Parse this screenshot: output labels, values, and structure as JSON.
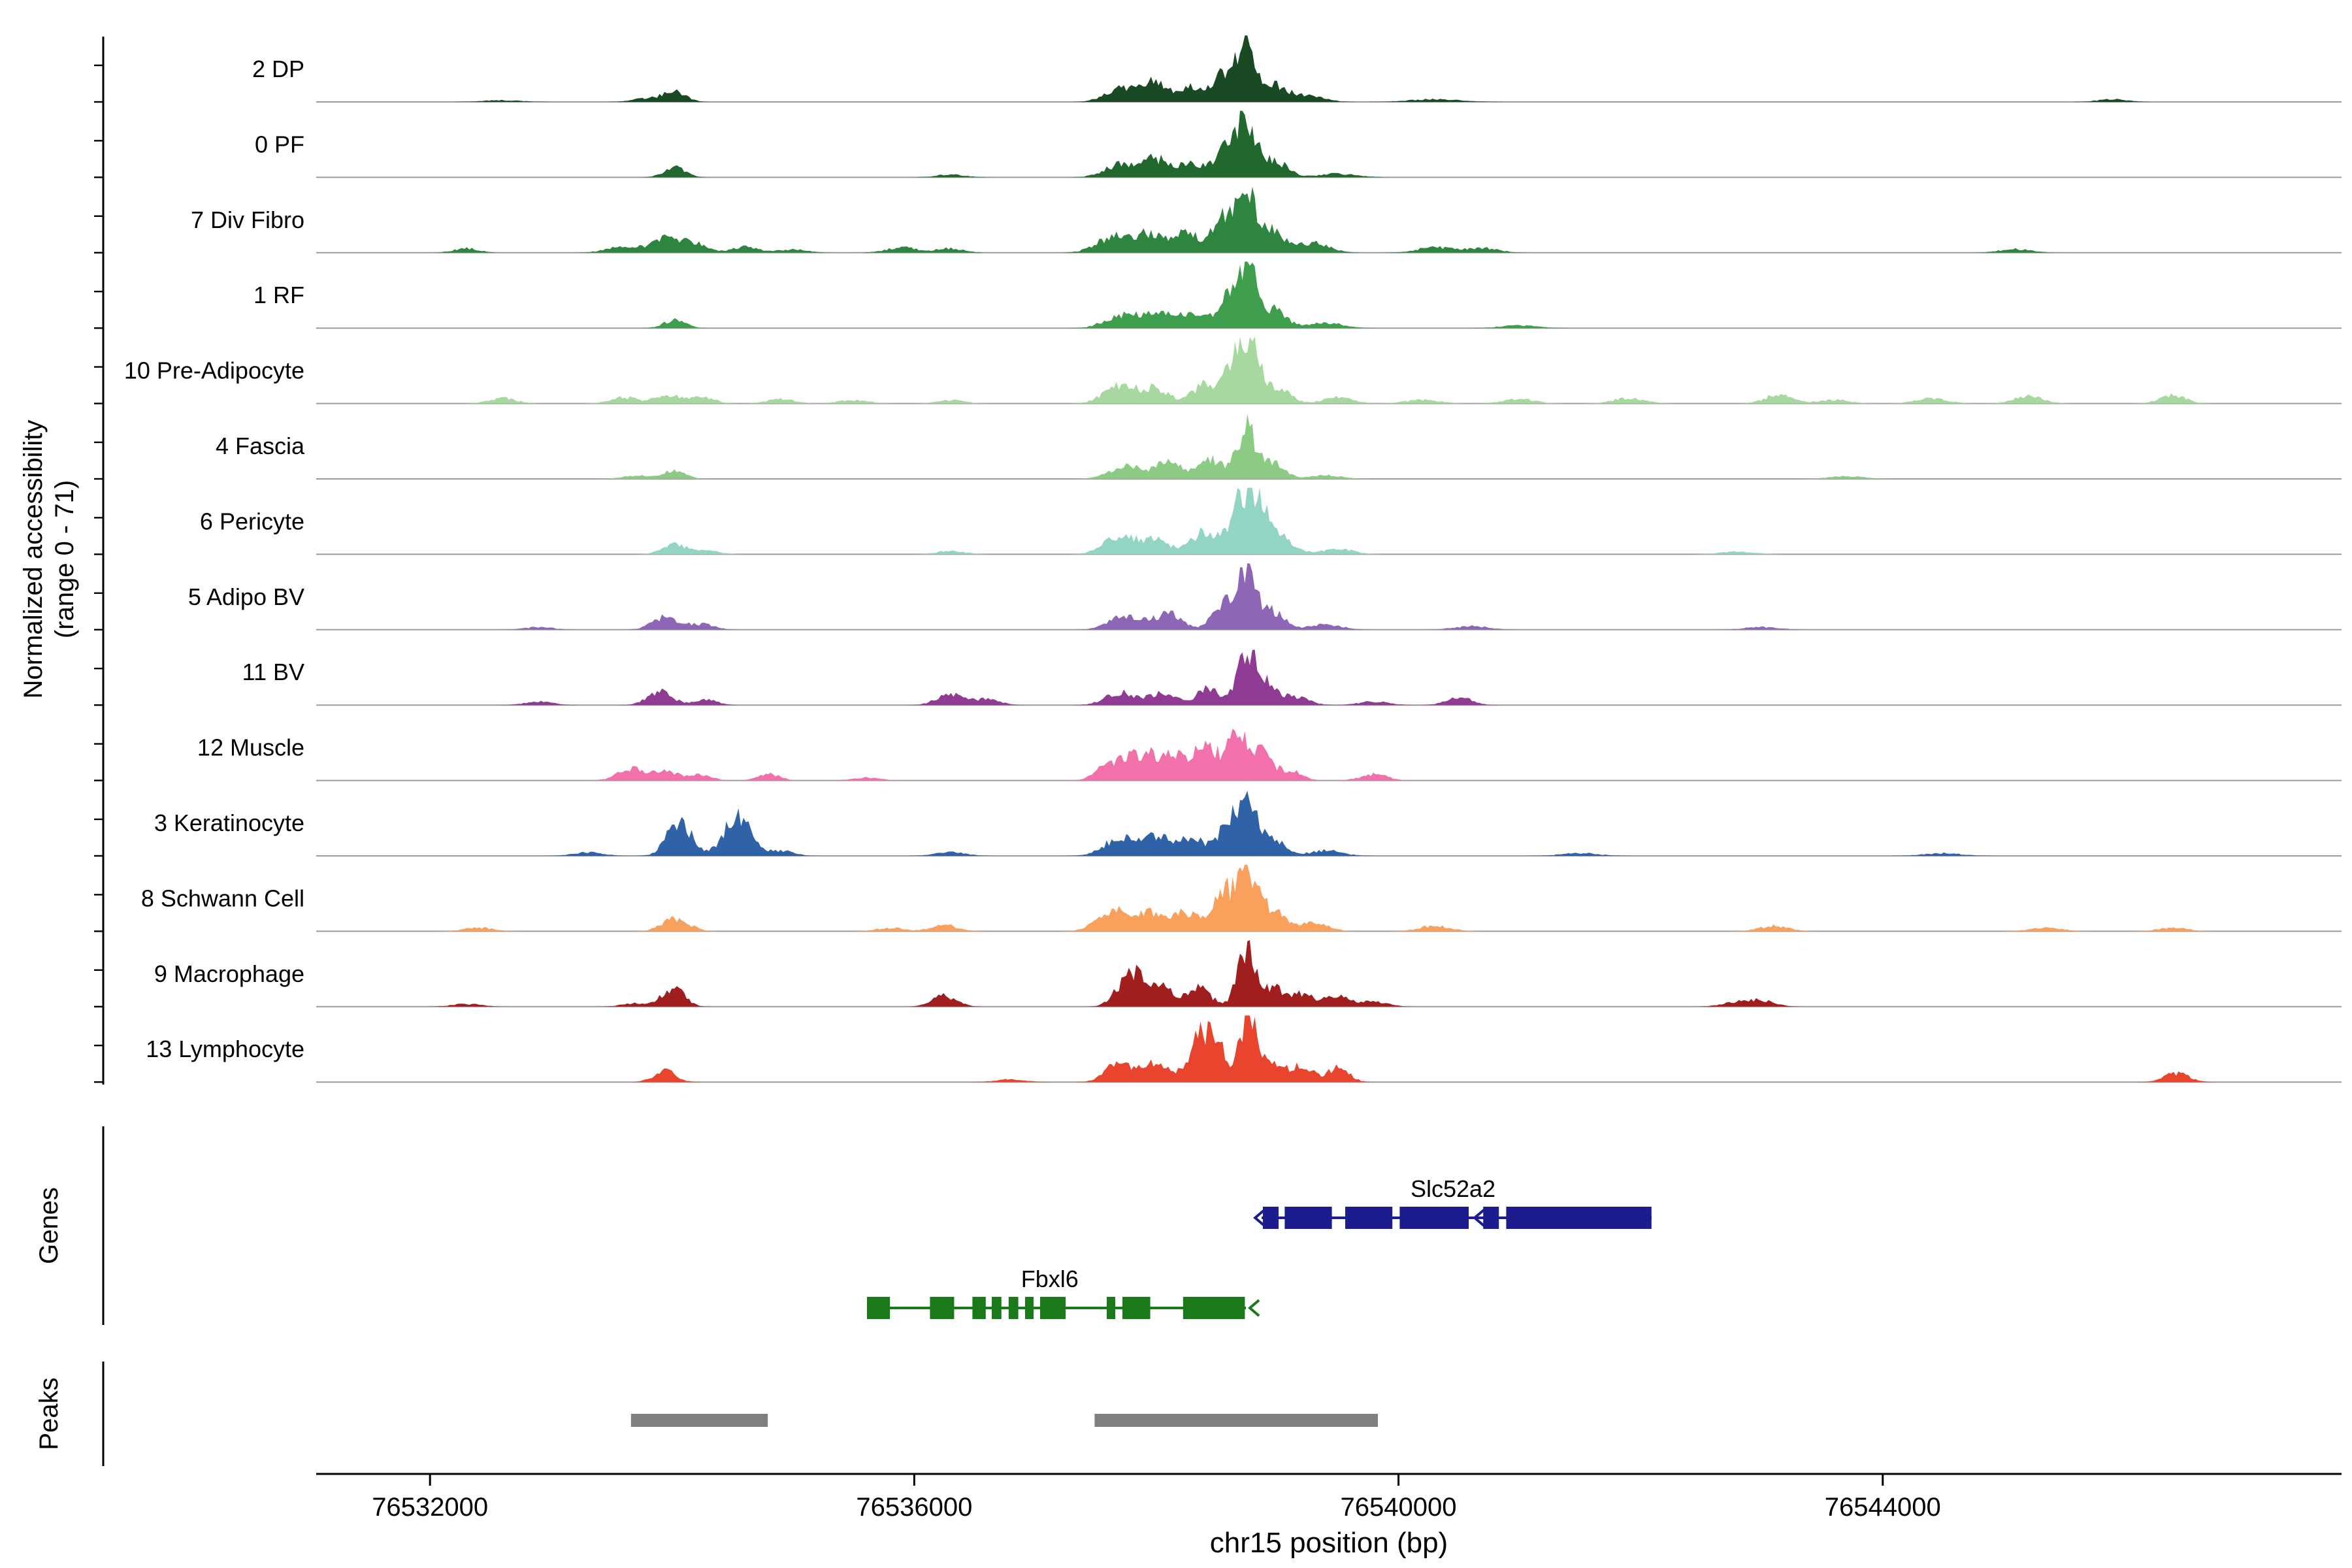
{
  "figure": {
    "background": "#ffffff",
    "y_axis_title_line1": "Normalized accessibility",
    "y_axis_title_line2": "(range 0 - 71)",
    "genes_section_label": "Genes",
    "peaks_section_label": "Peaks"
  },
  "chart_data": {
    "type": "area",
    "title": "",
    "xlabel": "chr15 position (bp)",
    "ylabel": "Normalized accessibility (range 0 - 71)",
    "region": {
      "chrom": "chr15",
      "start": 76531060,
      "end": 76547790
    },
    "track_value_range": [
      0,
      71
    ],
    "x_ticks": [
      76532000,
      76536000,
      76540000,
      76544000
    ],
    "x_tick_labels": [
      "76532000",
      "76536000",
      "76540000",
      "76544000"
    ],
    "bumps_encoding": "[position_bp, height_0_to_71, width_sigma_bp]",
    "tracks": [
      {
        "label": "2 DP",
        "color": "#1a4a23",
        "bumps": [
          [
            76532600,
            2,
            150
          ],
          [
            76533800,
            4,
            120
          ],
          [
            76534020,
            12,
            90
          ],
          [
            76537700,
            16,
            120
          ],
          [
            76537980,
            21,
            110
          ],
          [
            76538280,
            16,
            100
          ],
          [
            76538560,
            32,
            90
          ],
          [
            76538740,
            67,
            70
          ],
          [
            76538950,
            21,
            110
          ],
          [
            76539250,
            7,
            130
          ],
          [
            76540300,
            3,
            200
          ],
          [
            76545900,
            3,
            120
          ]
        ]
      },
      {
        "label": "0 PF",
        "color": "#22672e",
        "bumps": [
          [
            76534020,
            11,
            90
          ],
          [
            76536300,
            3,
            120
          ],
          [
            76537700,
            14,
            130
          ],
          [
            76538000,
            20,
            120
          ],
          [
            76538300,
            14,
            100
          ],
          [
            76538560,
            28,
            90
          ],
          [
            76538740,
            65,
            75
          ],
          [
            76538960,
            20,
            110
          ],
          [
            76539500,
            4,
            150
          ]
        ]
      },
      {
        "label": "7 Div Fibro",
        "color": "#2e8540",
        "bumps": [
          [
            76532300,
            5,
            100
          ],
          [
            76533600,
            7,
            140
          ],
          [
            76533960,
            16,
            120
          ],
          [
            76534200,
            9,
            100
          ],
          [
            76534600,
            7,
            100
          ],
          [
            76535000,
            4,
            120
          ],
          [
            76535900,
            6,
            130
          ],
          [
            76536300,
            5,
            110
          ],
          [
            76537650,
            18,
            140
          ],
          [
            76537950,
            21,
            120
          ],
          [
            76538250,
            21,
            110
          ],
          [
            76538560,
            39,
            90
          ],
          [
            76538740,
            67,
            70
          ],
          [
            76538950,
            25,
            110
          ],
          [
            76539300,
            11,
            130
          ],
          [
            76540300,
            6,
            150
          ],
          [
            76540700,
            5,
            130
          ],
          [
            76545100,
            4,
            130
          ]
        ]
      },
      {
        "label": "1 RF",
        "color": "#3f9e4d",
        "bumps": [
          [
            76534020,
            9,
            90
          ],
          [
            76537700,
            14,
            130
          ],
          [
            76538000,
            18,
            120
          ],
          [
            76538300,
            16,
            100
          ],
          [
            76538600,
            36,
            90
          ],
          [
            76538750,
            64,
            70
          ],
          [
            76538950,
            21,
            110
          ],
          [
            76539400,
            6,
            140
          ],
          [
            76541000,
            3,
            150
          ]
        ]
      },
      {
        "label": "10 Pre-Adipocyte",
        "color": "#a7d8a0",
        "bumps": [
          [
            76532600,
            6,
            110
          ],
          [
            76533600,
            7,
            110
          ],
          [
            76533960,
            10,
            100
          ],
          [
            76534250,
            7,
            100
          ],
          [
            76534900,
            5,
            110
          ],
          [
            76535500,
            4,
            120
          ],
          [
            76536300,
            4,
            110
          ],
          [
            76537700,
            20,
            130
          ],
          [
            76538000,
            16,
            110
          ],
          [
            76538400,
            21,
            100
          ],
          [
            76538650,
            53,
            80
          ],
          [
            76538800,
            60,
            70
          ],
          [
            76539000,
            18,
            100
          ],
          [
            76539500,
            7,
            120
          ],
          [
            76540200,
            4,
            140
          ],
          [
            76541000,
            5,
            130
          ],
          [
            76541900,
            6,
            130
          ],
          [
            76543150,
            11,
            110
          ],
          [
            76543600,
            4,
            130
          ],
          [
            76544400,
            6,
            130
          ],
          [
            76545200,
            8,
            120
          ],
          [
            76546400,
            9,
            110
          ]
        ]
      },
      {
        "label": "4 Fascia",
        "color": "#8bcb84",
        "bumps": [
          [
            76533700,
            4,
            110
          ],
          [
            76534020,
            9,
            90
          ],
          [
            76537750,
            14,
            130
          ],
          [
            76538100,
            18,
            110
          ],
          [
            76538450,
            21,
            100
          ],
          [
            76538740,
            57,
            75
          ],
          [
            76538950,
            18,
            100
          ],
          [
            76539400,
            4,
            130
          ],
          [
            76543700,
            3,
            140
          ]
        ]
      },
      {
        "label": "6 Pericyte",
        "color": "#93d5c3",
        "bumps": [
          [
            76534020,
            11,
            100
          ],
          [
            76534300,
            4,
            100
          ],
          [
            76536300,
            4,
            110
          ],
          [
            76537700,
            20,
            130
          ],
          [
            76538000,
            16,
            110
          ],
          [
            76538400,
            25,
            110
          ],
          [
            76538700,
            57,
            90
          ],
          [
            76538850,
            50,
            80
          ],
          [
            76539050,
            18,
            100
          ],
          [
            76539500,
            6,
            130
          ],
          [
            76542800,
            3,
            140
          ]
        ]
      },
      {
        "label": "5 Adipo BV",
        "color": "#8d67b5",
        "bumps": [
          [
            76532900,
            3,
            120
          ],
          [
            76533950,
            14,
            110
          ],
          [
            76534250,
            6,
            100
          ],
          [
            76537750,
            16,
            130
          ],
          [
            76538100,
            18,
            110
          ],
          [
            76538560,
            32,
            90
          ],
          [
            76538750,
            65,
            70
          ],
          [
            76538950,
            21,
            100
          ],
          [
            76539400,
            6,
            130
          ],
          [
            76540600,
            4,
            140
          ],
          [
            76543000,
            3,
            140
          ]
        ]
      },
      {
        "label": "11 BV",
        "color": "#8f3b94",
        "bumps": [
          [
            76532900,
            4,
            110
          ],
          [
            76533900,
            16,
            100
          ],
          [
            76534280,
            7,
            90
          ],
          [
            76536300,
            13,
            110
          ],
          [
            76536600,
            7,
            100
          ],
          [
            76537700,
            14,
            120
          ],
          [
            76538050,
            13,
            110
          ],
          [
            76538430,
            18,
            100
          ],
          [
            76538740,
            55,
            75
          ],
          [
            76538900,
            25,
            90
          ],
          [
            76539150,
            9,
            110
          ],
          [
            76539800,
            4,
            120
          ],
          [
            76540500,
            9,
            100
          ]
        ]
      },
      {
        "label": "12 Muscle",
        "color": "#f271ab",
        "bumps": [
          [
            76533660,
            14,
            110
          ],
          [
            76533950,
            10,
            100
          ],
          [
            76534230,
            7,
            90
          ],
          [
            76534800,
            7,
            90
          ],
          [
            76535600,
            3,
            120
          ],
          [
            76537650,
            21,
            120
          ],
          [
            76537900,
            28,
            110
          ],
          [
            76538150,
            25,
            100
          ],
          [
            76538400,
            36,
            100
          ],
          [
            76538650,
            51,
            80
          ],
          [
            76538850,
            32,
            90
          ],
          [
            76539100,
            11,
            100
          ],
          [
            76539800,
            7,
            110
          ]
        ]
      },
      {
        "label": "3 Keratinocyte",
        "color": "#2f62a6",
        "bumps": [
          [
            76533300,
            4,
            120
          ],
          [
            76534060,
            39,
            100
          ],
          [
            76534540,
            44,
            110
          ],
          [
            76534900,
            6,
            100
          ],
          [
            76536300,
            4,
            120
          ],
          [
            76537700,
            20,
            130
          ],
          [
            76538000,
            23,
            120
          ],
          [
            76538300,
            20,
            100
          ],
          [
            76538600,
            36,
            90
          ],
          [
            76538760,
            58,
            70
          ],
          [
            76538950,
            21,
            100
          ],
          [
            76539400,
            6,
            130
          ],
          [
            76541500,
            3,
            150
          ],
          [
            76544500,
            3,
            150
          ]
        ]
      },
      {
        "label": "8 Schwann Cell",
        "color": "#f9a05c",
        "bumps": [
          [
            76532400,
            4,
            120
          ],
          [
            76534030,
            14,
            110
          ],
          [
            76535800,
            4,
            110
          ],
          [
            76536250,
            7,
            110
          ],
          [
            76537650,
            23,
            130
          ],
          [
            76537950,
            20,
            110
          ],
          [
            76538250,
            21,
            100
          ],
          [
            76538550,
            43,
            90
          ],
          [
            76538750,
            60,
            80
          ],
          [
            76538950,
            25,
            100
          ],
          [
            76539300,
            9,
            120
          ],
          [
            76540300,
            6,
            130
          ],
          [
            76543100,
            6,
            120
          ],
          [
            76545350,
            4,
            130
          ],
          [
            76546400,
            4,
            120
          ]
        ]
      },
      {
        "label": "9 Macrophage",
        "color": "#a01e1e",
        "bumps": [
          [
            76532300,
            3,
            120
          ],
          [
            76533700,
            4,
            110
          ],
          [
            76534010,
            21,
            90
          ],
          [
            76536250,
            12,
            100
          ],
          [
            76537800,
            39,
            110
          ],
          [
            76538050,
            21,
            100
          ],
          [
            76538350,
            20,
            100
          ],
          [
            76538740,
            67,
            70
          ],
          [
            76538950,
            21,
            100
          ],
          [
            76539200,
            14,
            100
          ],
          [
            76539500,
            13,
            100
          ],
          [
            76539800,
            6,
            110
          ],
          [
            76542800,
            5,
            120
          ],
          [
            76543000,
            6,
            110
          ]
        ]
      },
      {
        "label": "13 Lymphocyte",
        "color": "#e8442e",
        "bumps": [
          [
            76533940,
            13,
            90
          ],
          [
            76536800,
            3,
            120
          ],
          [
            76537700,
            23,
            110
          ],
          [
            76538000,
            20,
            110
          ],
          [
            76538350,
            46,
            90
          ],
          [
            76538500,
            39,
            80
          ],
          [
            76538760,
            71,
            70
          ],
          [
            76538950,
            20,
            100
          ],
          [
            76539200,
            18,
            90
          ],
          [
            76539500,
            16,
            90
          ],
          [
            76546430,
            10,
            100
          ]
        ]
      }
    ],
    "genes": [
      {
        "name": "Slc52a2",
        "color": "#1c1c8f",
        "strand": "-",
        "start": 76538870,
        "end": 76542090,
        "label_bp": 76540450,
        "row": 0,
        "arrow_at": "start",
        "intron_arrow_bp": 76540640,
        "exons": [
          [
            76538880,
            76539010
          ],
          [
            76539060,
            76539450
          ],
          [
            76539560,
            76539950
          ],
          [
            76540010,
            76540580
          ],
          [
            76540700,
            76540830
          ],
          [
            76540890,
            76542090
          ]
        ]
      },
      {
        "name": "Fbxl6",
        "color": "#1a7a1a",
        "strand": "-",
        "start": 76535610,
        "end": 76538740,
        "label_bp": 76537120,
        "row": 1,
        "arrow_at": "end",
        "exons": [
          [
            76535610,
            76535800
          ],
          [
            76536130,
            76536330
          ],
          [
            76536480,
            76536590
          ],
          [
            76536640,
            76536720
          ],
          [
            76536780,
            76536860
          ],
          [
            76536915,
            76536985
          ],
          [
            76537040,
            76537250
          ],
          [
            76537590,
            76537660
          ],
          [
            76537720,
            76537950
          ],
          [
            76538220,
            76538730
          ]
        ]
      }
    ],
    "peaks": {
      "color": "#808080",
      "ranges": [
        [
          76533660,
          76534790
        ],
        [
          76537490,
          76539830
        ]
      ]
    }
  }
}
